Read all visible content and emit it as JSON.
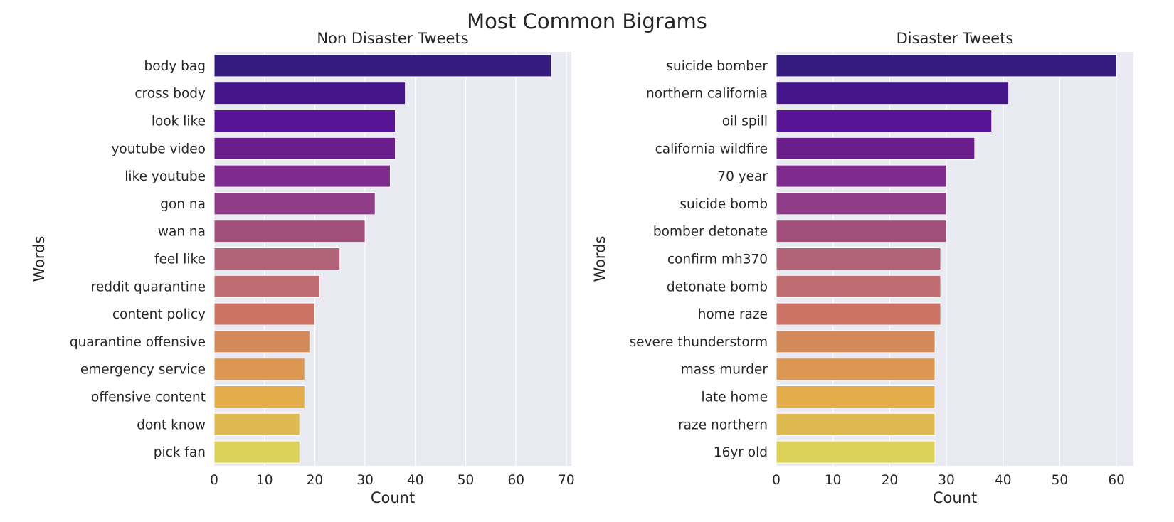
{
  "suptitle": "Most Common Bigrams",
  "chart_data": [
    {
      "type": "bar",
      "orientation": "horizontal",
      "title": "Non Disaster Tweets",
      "xlabel": "Count",
      "ylabel": "Words",
      "xlim": [
        0,
        71
      ],
      "xticks": [
        0,
        10,
        20,
        30,
        40,
        50,
        60,
        70
      ],
      "grid": true,
      "palette": "plasma",
      "categories": [
        "body bag",
        "cross body",
        "look like",
        "youtube video",
        "like youtube",
        "gon na",
        "wan na",
        "feel like",
        "reddit quarantine",
        "content policy",
        "quarantine offensive",
        "emergency service",
        "offensive content",
        "dont know",
        "pick fan"
      ],
      "values": [
        67,
        38,
        36,
        36,
        35,
        32,
        30,
        25,
        21,
        20,
        19,
        18,
        18,
        17,
        17
      ]
    },
    {
      "type": "bar",
      "orientation": "horizontal",
      "title": "Disaster Tweets",
      "xlabel": "Count",
      "ylabel": "Words",
      "xlim": [
        0,
        63
      ],
      "xticks": [
        0,
        10,
        20,
        30,
        40,
        50,
        60
      ],
      "grid": true,
      "palette": "plasma",
      "categories": [
        "suicide bomber",
        "northern california",
        "oil spill",
        "california wildfire",
        "70 year",
        "suicide bomb",
        "bomber detonate",
        "confirm mh370",
        "detonate bomb",
        "home raze",
        "severe thunderstorm",
        "mass murder",
        "late home",
        "raze northern",
        "16yr old"
      ],
      "values": [
        60,
        41,
        38,
        35,
        30,
        30,
        30,
        29,
        29,
        29,
        28,
        28,
        28,
        28,
        28
      ]
    }
  ],
  "colors": {
    "axes_background": "#eaeaf2",
    "grid": "#ffffff",
    "text": "#262626",
    "bar_palette": [
      "#351b7e",
      "#44158a",
      "#561494",
      "#6a1e8c",
      "#7f2b8e",
      "#8f3c88",
      "#a24e7b",
      "#b26377",
      "#c06d72",
      "#cb7465",
      "#d38a5a",
      "#dc9852",
      "#e2ad4a",
      "#ddb94f",
      "#dbd158"
    ]
  }
}
